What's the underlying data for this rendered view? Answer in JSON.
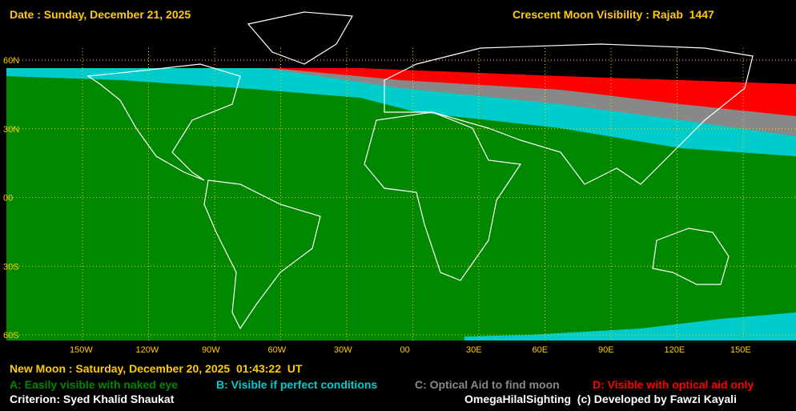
{
  "header": {
    "date": "Date : Sunday, December 21, 2025",
    "title": "Crescent Moon Visibility : Rajab  1447"
  },
  "grid": {
    "latitudes": [
      "60N",
      "30N",
      "00",
      "30S",
      "60S"
    ],
    "longitudes": [
      "150W",
      "120W",
      "90W",
      "60W",
      "30W",
      "00",
      "30E",
      "60E",
      "90E",
      "120E",
      "150E"
    ]
  },
  "footer": {
    "new_moon": "New Moon : Saturday, December 20, 2025  01:43:22  UT",
    "criterion": "Criterion: Syed Khalid Shaukat",
    "credit": "OmegaHilalSighting  (c) Developed by Fawzi Kayali"
  },
  "legend": {
    "items": [
      {
        "label": "A: Easily visible with naked eye",
        "color": "#008800"
      },
      {
        "label": "B: Visible if perfect conditions",
        "color": "#00cccc"
      },
      {
        "label": "C: Optical Aid to find moon",
        "color": "#888888"
      },
      {
        "label": "D: Visible with optical aid only",
        "color": "#ff0000"
      }
    ]
  }
}
